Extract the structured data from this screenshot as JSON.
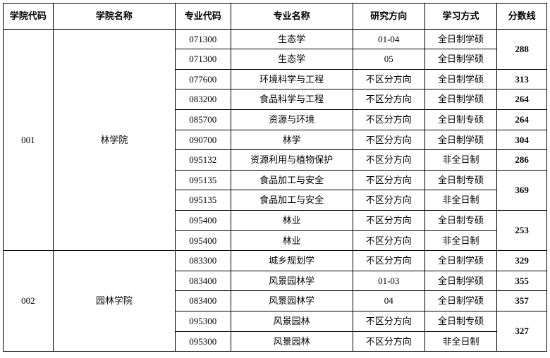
{
  "headers": {
    "college_code": "学院代码",
    "college_name": "学院名称",
    "major_code": "专业代码",
    "major_name": "专业名称",
    "direction": "研究方向",
    "mode": "学习方式",
    "score": "分数线"
  },
  "colleges": [
    {
      "code": "001",
      "name": "林学院",
      "rows": [
        {
          "major_code": "071300",
          "major_name": "生态学",
          "direction": "01-04",
          "mode": "全日制学硕",
          "score": "288",
          "score_rowspan": 2
        },
        {
          "major_code": "071300",
          "major_name": "生态学",
          "direction": "05",
          "mode": "全日制学硕"
        },
        {
          "major_code": "077600",
          "major_name": "环境科学与工程",
          "direction": "不区分方向",
          "mode": "全日制学硕",
          "score": "313",
          "score_rowspan": 1
        },
        {
          "major_code": "083200",
          "major_name": "食品科学与工程",
          "direction": "不区分方向",
          "mode": "全日制学硕",
          "score": "264",
          "score_rowspan": 1
        },
        {
          "major_code": "085700",
          "major_name": "资源与环境",
          "direction": "不区分方向",
          "mode": "全日制专硕",
          "score": "264",
          "score_rowspan": 1
        },
        {
          "major_code": "090700",
          "major_name": "林学",
          "direction": "不区分方向",
          "mode": "全日制学硕",
          "score": "304",
          "score_rowspan": 1
        },
        {
          "major_code": "095132",
          "major_name": "资源利用与植物保护",
          "direction": "不区分方向",
          "mode": "非全日制",
          "score": "286",
          "score_rowspan": 1
        },
        {
          "major_code": "095135",
          "major_name": "食品加工与安全",
          "direction": "不区分方向",
          "mode": "全日制专硕",
          "score": "369",
          "score_rowspan": 2
        },
        {
          "major_code": "095135",
          "major_name": "食品加工与安全",
          "direction": "不区分方向",
          "mode": "非全日制"
        },
        {
          "major_code": "095400",
          "major_name": "林业",
          "direction": "不区分方向",
          "mode": "全日制专硕",
          "score": "253",
          "score_rowspan": 2
        },
        {
          "major_code": "095400",
          "major_name": "林业",
          "direction": "不区分方向",
          "mode": "非全日制"
        }
      ]
    },
    {
      "code": "002",
      "name": "园林学院",
      "rows": [
        {
          "major_code": "083300",
          "major_name": "城乡规划学",
          "direction": "不区分方向",
          "mode": "全日制学硕",
          "score": "329",
          "score_rowspan": 1
        },
        {
          "major_code": "083400",
          "major_name": "风景园林学",
          "direction": "01-03",
          "mode": "全日制学硕",
          "score": "355",
          "score_rowspan": 1
        },
        {
          "major_code": "083400",
          "major_name": "风景园林学",
          "direction": "04",
          "mode": "全日制学硕",
          "score": "357",
          "score_rowspan": 1
        },
        {
          "major_code": "095300",
          "major_name": "风景园林",
          "direction": "不区分方向",
          "mode": "全日制专硕",
          "score": "327",
          "score_rowspan": 2
        },
        {
          "major_code": "095300",
          "major_name": "风景园林",
          "direction": "不区分方向",
          "mode": "非全日制"
        }
      ]
    }
  ]
}
